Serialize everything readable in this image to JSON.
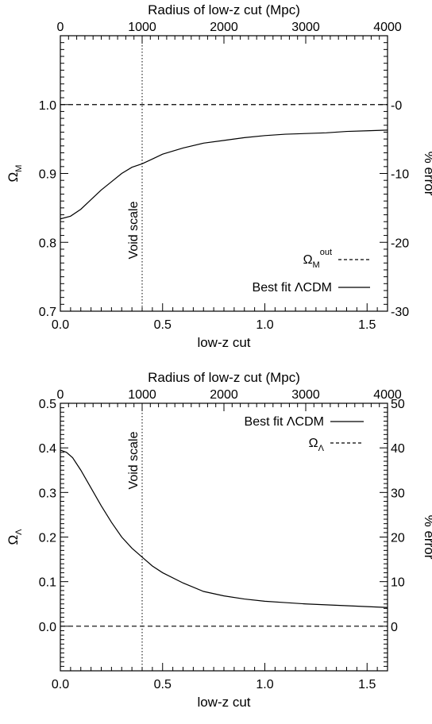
{
  "chart_data": [
    {
      "type": "line",
      "panel": "top",
      "xlabel": "low-z cut",
      "ylabel": "Ω_M",
      "ylabel_main": "Ω",
      "ylabel_sub": "M",
      "xlim": [
        0.0,
        1.6
      ],
      "ylim": [
        0.7,
        1.1
      ],
      "x_ticks": [
        0.0,
        0.5,
        1.0,
        1.5
      ],
      "x_tick_labels": [
        "0.0",
        "0.5",
        "1.0",
        "1.5"
      ],
      "y_ticks": [
        0.7,
        0.8,
        0.9,
        1.0
      ],
      "y_tick_labels": [
        "0.7",
        "0.8",
        "0.9",
        "1.0"
      ],
      "top_axis": {
        "label": "Radius of low-z cut (Mpc)",
        "ticks_at_x": [
          0.0,
          0.4,
          0.8,
          1.2,
          1.6
        ],
        "tick_labels": [
          "0",
          "1000",
          "2000",
          "3000",
          "4000"
        ]
      },
      "right_axis": {
        "label": "% error",
        "ticks_at_y": [
          1.0,
          0.9,
          0.8,
          0.7
        ],
        "tick_labels": [
          "-0",
          "-10",
          "-20",
          "-30"
        ]
      },
      "series": [
        {
          "name": "Best fit ΛCDM",
          "style": "solid",
          "x": [
            0.0,
            0.05,
            0.1,
            0.15,
            0.2,
            0.25,
            0.3,
            0.35,
            0.4,
            0.45,
            0.5,
            0.6,
            0.7,
            0.8,
            0.9,
            1.0,
            1.1,
            1.2,
            1.3,
            1.4,
            1.5,
            1.6
          ],
          "y": [
            0.834,
            0.838,
            0.848,
            0.862,
            0.876,
            0.888,
            0.9,
            0.909,
            0.914,
            0.921,
            0.928,
            0.937,
            0.944,
            0.948,
            0.952,
            0.955,
            0.957,
            0.958,
            0.959,
            0.961,
            0.962,
            0.963
          ]
        },
        {
          "name": "Ω_M^out",
          "legend_main": "Ω",
          "legend_sub": "M",
          "legend_sup": "out",
          "style": "dashed",
          "x": [
            0.0,
            1.6
          ],
          "y": [
            1.0,
            1.0
          ]
        }
      ],
      "legend": {
        "position": "bottom-right",
        "order": [
          1,
          0
        ]
      },
      "annotation": {
        "text": "Void scale",
        "x": 0.4,
        "style": "dotted"
      }
    },
    {
      "type": "line",
      "panel": "bottom",
      "xlabel": "low-z cut",
      "ylabel": "Ω_Λ",
      "ylabel_main": "Ω",
      "ylabel_sub": "Λ",
      "xlim": [
        0.0,
        1.6
      ],
      "ylim": [
        -0.1,
        0.5
      ],
      "x_ticks": [
        0.0,
        0.5,
        1.0,
        1.5
      ],
      "x_tick_labels": [
        "0.0",
        "0.5",
        "1.0",
        "1.5"
      ],
      "y_ticks": [
        0.0,
        0.1,
        0.2,
        0.3,
        0.4,
        0.5
      ],
      "y_tick_labels": [
        "0.0",
        "0.1",
        "0.2",
        "0.3",
        "0.4",
        "0.5"
      ],
      "top_axis": {
        "label": "Radius of low-z cut (Mpc)",
        "ticks_at_x": [
          0.0,
          0.4,
          0.8,
          1.2,
          1.6
        ],
        "tick_labels": [
          "0",
          "1000",
          "2000",
          "3000",
          "4000"
        ]
      },
      "right_axis": {
        "label": "% error",
        "ticks_at_y": [
          0.0,
          0.1,
          0.2,
          0.3,
          0.4,
          0.5
        ],
        "tick_labels": [
          "0",
          "10",
          "20",
          "30",
          "40",
          "50"
        ]
      },
      "series": [
        {
          "name": "Best fit ΛCDM",
          "style": "solid",
          "x": [
            0.0,
            0.03,
            0.06,
            0.1,
            0.15,
            0.2,
            0.25,
            0.3,
            0.35,
            0.4,
            0.45,
            0.5,
            0.6,
            0.7,
            0.8,
            0.9,
            1.0,
            1.1,
            1.2,
            1.3,
            1.4,
            1.5,
            1.6
          ],
          "y": [
            0.395,
            0.39,
            0.378,
            0.35,
            0.31,
            0.27,
            0.233,
            0.2,
            0.175,
            0.155,
            0.135,
            0.12,
            0.097,
            0.078,
            0.068,
            0.061,
            0.056,
            0.053,
            0.05,
            0.048,
            0.046,
            0.044,
            0.042
          ]
        },
        {
          "name": "Ω_Λ",
          "legend_main": "Ω",
          "legend_sub": "Λ",
          "style": "dashed",
          "x": [
            0.0,
            1.6
          ],
          "y": [
            0.0,
            0.0
          ]
        }
      ],
      "legend": {
        "position": "top-right",
        "order": [
          0,
          1
        ]
      },
      "annotation": {
        "text": "Void scale",
        "x": 0.4,
        "style": "dotted"
      }
    }
  ]
}
